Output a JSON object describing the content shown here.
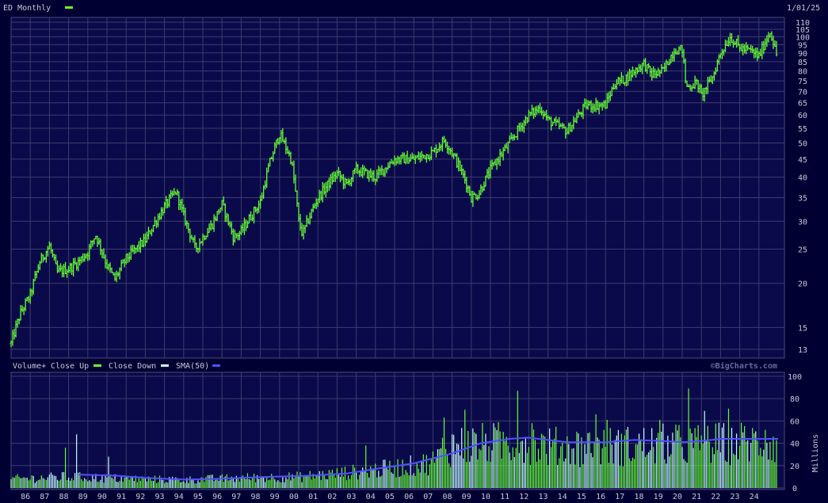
{
  "chart_data": [
    {
      "type": "bar",
      "title": "ED Monthly",
      "date_label": "1/01/25",
      "scale": "log",
      "ylim": [
        13,
        110
      ],
      "y_ticks": [
        13,
        15,
        20,
        25,
        30,
        35,
        40,
        45,
        50,
        55,
        60,
        65,
        70,
        75,
        80,
        85,
        90,
        95,
        100,
        105,
        110
      ],
      "x_tick_labels": [
        "86",
        "87",
        "88",
        "89",
        "90",
        "91",
        "92",
        "93",
        "94",
        "95",
        "96",
        "97",
        "98",
        "99",
        "00",
        "01",
        "02",
        "03",
        "04",
        "05",
        "06",
        "07",
        "08",
        "09",
        "10",
        "11",
        "12",
        "13",
        "14",
        "15",
        "16",
        "17",
        "18",
        "19",
        "20",
        "21",
        "22",
        "23",
        "24"
      ],
      "grid": true,
      "series_color": "#66ff33",
      "price_path": [
        [
          1985.0,
          13.5
        ],
        [
          1985.5,
          16.5
        ],
        [
          1986.0,
          18.5
        ],
        [
          1986.5,
          23
        ],
        [
          1987.0,
          25.5
        ],
        [
          1987.4,
          21.5
        ],
        [
          1988.0,
          22
        ],
        [
          1988.5,
          23
        ],
        [
          1989.0,
          24.5
        ],
        [
          1989.4,
          27.5
        ],
        [
          1990.0,
          22.5
        ],
        [
          1990.4,
          20.5
        ],
        [
          1991.0,
          23.5
        ],
        [
          1992.0,
          26.5
        ],
        [
          1993.0,
          33
        ],
        [
          1993.6,
          36.5
        ],
        [
          1994.0,
          31
        ],
        [
          1994.6,
          25
        ],
        [
          1995.0,
          27
        ],
        [
          1995.5,
          29.5
        ],
        [
          1996.0,
          33.5
        ],
        [
          1996.6,
          27
        ],
        [
          1997.0,
          28
        ],
        [
          1998.0,
          34
        ],
        [
          1998.5,
          44
        ],
        [
          1999.0,
          53
        ],
        [
          1999.6,
          45
        ],
        [
          2000.0,
          30
        ],
        [
          2000.2,
          27.5
        ],
        [
          2001.0,
          35
        ],
        [
          2002.0,
          41
        ],
        [
          2002.5,
          38
        ],
        [
          2003.0,
          42
        ],
        [
          2004.0,
          40
        ],
        [
          2005.0,
          45
        ],
        [
          2006.0,
          45
        ],
        [
          2007.0,
          47
        ],
        [
          2007.6,
          51
        ],
        [
          2008.0,
          47
        ],
        [
          2008.7,
          39
        ],
        [
          2009.0,
          35
        ],
        [
          2009.4,
          36
        ],
        [
          2010.0,
          42
        ],
        [
          2011.0,
          50
        ],
        [
          2012.0,
          60
        ],
        [
          2012.6,
          63
        ],
        [
          2013.0,
          58
        ],
        [
          2014.0,
          54
        ],
        [
          2014.6,
          60
        ],
        [
          2015.0,
          64
        ],
        [
          2016.0,
          64
        ],
        [
          2016.5,
          74
        ],
        [
          2017.0,
          76
        ],
        [
          2018.0,
          84
        ],
        [
          2018.4,
          78
        ],
        [
          2019.0,
          80
        ],
        [
          2019.6,
          92
        ],
        [
          2020.0,
          92
        ],
        [
          2020.2,
          72
        ],
        [
          2020.8,
          74
        ],
        [
          2021.0,
          68
        ],
        [
          2021.6,
          77
        ],
        [
          2022.0,
          90
        ],
        [
          2022.5,
          100
        ],
        [
          2023.0,
          93
        ],
        [
          2023.6,
          91
        ],
        [
          2024.0,
          88
        ],
        [
          2024.6,
          104
        ],
        [
          2024.9,
          89
        ]
      ]
    },
    {
      "type": "bar",
      "title": "Volume+",
      "legend": [
        "Close Up",
        "Close Down",
        "SMA(50)"
      ],
      "legend_colors": [
        "#66ff33",
        "#c8ffff",
        "#5050ff"
      ],
      "ylabel": "Millions",
      "ylim": [
        0,
        100
      ],
      "y_ticks": [
        0,
        20,
        40,
        60,
        80,
        100
      ],
      "watermark": "©BigCharts.com",
      "volume_level": [
        [
          1985,
          9
        ],
        [
          1988,
          11
        ],
        [
          1991,
          9
        ],
        [
          1994,
          8
        ],
        [
          1997,
          10
        ],
        [
          2000,
          11
        ],
        [
          2002,
          14
        ],
        [
          2004,
          18
        ],
        [
          2006,
          22
        ],
        [
          2007,
          26
        ],
        [
          2008,
          42
        ],
        [
          2010,
          44
        ],
        [
          2012,
          46
        ],
        [
          2013,
          41
        ],
        [
          2016,
          41
        ],
        [
          2019,
          43
        ],
        [
          2021,
          43
        ],
        [
          2023,
          45
        ],
        [
          2025,
          45
        ]
      ],
      "sma_50": [
        [
          1988.5,
          12
        ],
        [
          1990.5,
          11
        ],
        [
          1992,
          9
        ],
        [
          1994,
          7.5
        ],
        [
          1995.5,
          8
        ],
        [
          1997,
          9
        ],
        [
          1998.5,
          10
        ],
        [
          2000.5,
          11
        ],
        [
          2002.5,
          13
        ],
        [
          2004,
          17
        ],
        [
          2006,
          22
        ],
        [
          2008,
          31
        ],
        [
          2009.5,
          40
        ],
        [
          2011,
          44
        ],
        [
          2012,
          45
        ],
        [
          2013,
          43
        ],
        [
          2014,
          41
        ],
        [
          2016,
          41
        ],
        [
          2017.5,
          43
        ],
        [
          2019,
          42
        ],
        [
          2020,
          41
        ],
        [
          2021,
          42
        ],
        [
          2022,
          44
        ],
        [
          2024,
          44
        ],
        [
          2025,
          44
        ]
      ],
      "spikes": [
        [
          1987.8,
          36
        ],
        [
          1988.4,
          48
        ],
        [
          1990.1,
          28
        ],
        [
          2003.5,
          38
        ],
        [
          2007.5,
          45
        ],
        [
          2007.6,
          63
        ],
        [
          2008.7,
          70
        ],
        [
          2011.4,
          87
        ],
        [
          2012.2,
          58
        ],
        [
          2015.5,
          66
        ],
        [
          2016.1,
          61
        ],
        [
          2018.8,
          61
        ],
        [
          2020.3,
          89
        ],
        [
          2021.2,
          69
        ],
        [
          2022.4,
          71
        ],
        [
          2024.3,
          52
        ]
      ]
    }
  ]
}
